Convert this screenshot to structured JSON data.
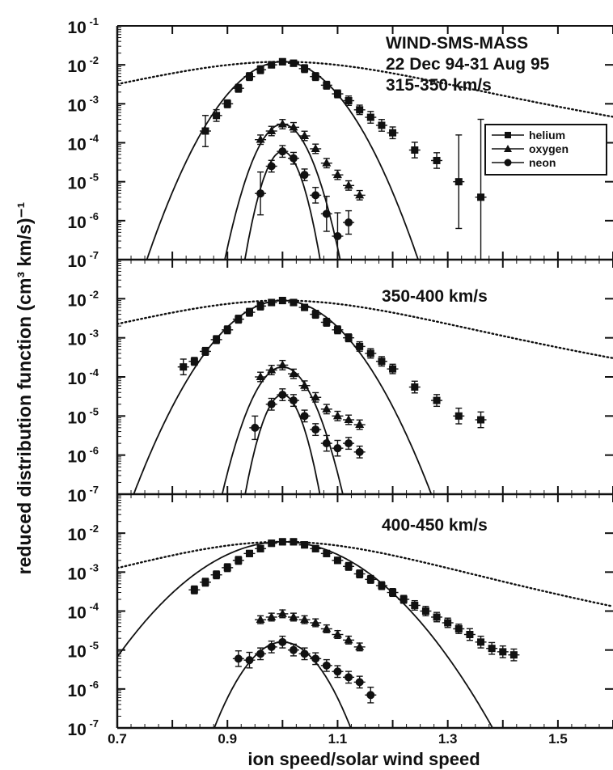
{
  "chart_data": {
    "type": "scatter",
    "xlabel": "ion speed/solar wind speed",
    "ylabel": "reduced distribution function (cm³ km/s)⁻¹",
    "xlim": [
      0.7,
      1.6
    ],
    "x_ticks": [
      "0.7",
      "0.9",
      "1.1",
      "1.3",
      "1.5"
    ],
    "x_tick_values": [
      0.7,
      0.9,
      1.1,
      1.3,
      1.5
    ],
    "y_scale": "log",
    "legend": {
      "placement": "top-right of top panel",
      "entries": [
        "helium",
        "oxygen",
        "neon"
      ]
    },
    "panels": [
      {
        "id": "p1",
        "annotations": [
          "WIND-SMS-MASS",
          "22 Dec 94-31 Aug 95",
          "315-350  km/s"
        ],
        "ylim_exp": [
          -7,
          -1
        ],
        "y_ticks": [
          {
            "base": "10",
            "exp": "-1"
          },
          {
            "base": "10",
            "exp": "-2"
          },
          {
            "base": "10",
            "exp": "-3"
          },
          {
            "base": "10",
            "exp": "-4"
          },
          {
            "base": "10",
            "exp": "-5"
          },
          {
            "base": "10",
            "exp": "-6"
          },
          {
            "base": "10",
            "exp": "-7"
          }
        ],
        "series": [
          {
            "name": "helium",
            "marker": "square",
            "x": [
              0.86,
              0.88,
              0.9,
              0.92,
              0.94,
              0.96,
              0.98,
              1.0,
              1.02,
              1.04,
              1.06,
              1.08,
              1.1,
              1.12,
              1.14,
              1.16,
              1.18,
              1.2,
              1.24,
              1.28,
              1.32,
              1.36
            ],
            "y": [
              0.0002,
              0.0005,
              0.001,
              0.0025,
              0.005,
              0.0075,
              0.01,
              0.012,
              0.011,
              0.008,
              0.005,
              0.003,
              0.0018,
              0.0012,
              0.0007,
              0.00045,
              0.00028,
              0.00018,
              6.5e-05,
              3.5e-05,
              1e-05,
              4e-06
            ],
            "y_err": [
              0.4,
              0.15,
              0.1,
              0.1,
              0.1,
              0.1,
              0.08,
              0.08,
              0.08,
              0.1,
              0.1,
              0.1,
              0.1,
              0.12,
              0.12,
              0.15,
              0.15,
              0.15,
              0.2,
              0.2,
              1.2,
              2.0
            ]
          },
          {
            "name": "oxygen",
            "marker": "triangle",
            "x": [
              0.96,
              0.98,
              1.0,
              1.02,
              1.04,
              1.06,
              1.08,
              1.1,
              1.12,
              1.14
            ],
            "y": [
              0.00012,
              0.0002,
              0.0003,
              0.00025,
              0.00015,
              7e-05,
              3e-05,
              1.5e-05,
              8e-06,
              4.5e-06
            ],
            "y_err": [
              0.12,
              0.12,
              0.12,
              0.12,
              0.12,
              0.12,
              0.12,
              0.12,
              0.12,
              0.12
            ]
          },
          {
            "name": "neon",
            "marker": "circle",
            "x": [
              0.96,
              0.98,
              1.0,
              1.02,
              1.04,
              1.06,
              1.08,
              1.1,
              1.12
            ],
            "y": [
              5e-06,
              2.5e-05,
              6e-05,
              4e-05,
              1.5e-05,
              4.5e-06,
              1.5e-06,
              4e-07,
              9e-07
            ],
            "y_err": [
              0.55,
              0.15,
              0.15,
              0.15,
              0.15,
              0.2,
              0.45,
              0.6,
              0.3
            ]
          }
        ],
        "fits": [
          {
            "type": "dotted",
            "amp": 0.012,
            "x0": 1.0,
            "w": 0.34,
            "k": 2.3
          },
          {
            "type": "solid",
            "amp": 0.012,
            "x0": 1.0,
            "w": 0.072
          },
          {
            "type": "solid",
            "amp": 0.0003,
            "x0": 1.0,
            "w": 0.037
          },
          {
            "type": "solid",
            "amp": 6e-05,
            "x0": 1.0,
            "w": 0.027
          }
        ]
      },
      {
        "id": "p2",
        "annotations": [
          "350-400  km/s"
        ],
        "ylim_exp": [
          -7,
          -1
        ],
        "y_ticks": [
          {
            "base": "10",
            "exp": "-2"
          },
          {
            "base": "10",
            "exp": "-3"
          },
          {
            "base": "10",
            "exp": "-4"
          },
          {
            "base": "10",
            "exp": "-5"
          },
          {
            "base": "10",
            "exp": "-6"
          },
          {
            "base": "10",
            "exp": "-7"
          }
        ],
        "series": [
          {
            "name": "helium",
            "marker": "square",
            "x": [
              0.82,
              0.84,
              0.86,
              0.88,
              0.9,
              0.92,
              0.94,
              0.96,
              0.98,
              1.0,
              1.02,
              1.04,
              1.06,
              1.08,
              1.1,
              1.12,
              1.14,
              1.16,
              1.18,
              1.2,
              1.24,
              1.28,
              1.32,
              1.36
            ],
            "y": [
              0.00018,
              0.00025,
              0.00045,
              0.0009,
              0.0016,
              0.003,
              0.0045,
              0.0065,
              0.008,
              0.009,
              0.008,
              0.006,
              0.004,
              0.0025,
              0.0016,
              0.001,
              0.0006,
              0.0004,
              0.00025,
              0.00016,
              5.5e-05,
              2.5e-05,
              1e-05,
              8e-06
            ],
            "y_err": [
              0.2,
              0.1,
              0.1,
              0.1,
              0.1,
              0.1,
              0.1,
              0.1,
              0.08,
              0.08,
              0.08,
              0.08,
              0.1,
              0.1,
              0.1,
              0.1,
              0.12,
              0.12,
              0.12,
              0.12,
              0.15,
              0.15,
              0.2,
              0.2
            ]
          },
          {
            "name": "oxygen",
            "marker": "triangle",
            "x": [
              0.96,
              0.98,
              1.0,
              1.02,
              1.04,
              1.06,
              1.08,
              1.1,
              1.12,
              1.14
            ],
            "y": [
              0.0001,
              0.00015,
              0.0002,
              0.00012,
              6e-05,
              3e-05,
              1.5e-05,
              1e-05,
              8e-06,
              6e-06
            ],
            "y_err": [
              0.12,
              0.12,
              0.12,
              0.12,
              0.12,
              0.12,
              0.12,
              0.12,
              0.12,
              0.12
            ]
          },
          {
            "name": "neon",
            "marker": "circle",
            "x": [
              0.95,
              0.98,
              1.0,
              1.02,
              1.04,
              1.06,
              1.08,
              1.1,
              1.12,
              1.14
            ],
            "y": [
              5e-06,
              2e-05,
              3.5e-05,
              2.5e-05,
              1e-05,
              4.5e-06,
              2e-06,
              1.5e-06,
              2e-06,
              1.2e-06
            ],
            "y_err": [
              0.3,
              0.15,
              0.15,
              0.15,
              0.15,
              0.15,
              0.2,
              0.2,
              0.15,
              0.15
            ]
          }
        ],
        "fits": [
          {
            "type": "dotted",
            "amp": 0.009,
            "x0": 1.0,
            "w": 0.34,
            "k": 2.4
          },
          {
            "type": "solid",
            "amp": 0.009,
            "x0": 1.0,
            "w": 0.08
          },
          {
            "type": "solid",
            "amp": 0.00018,
            "x0": 1.0,
            "w": 0.04
          },
          {
            "type": "solid",
            "amp": 3.5e-05,
            "x0": 1.0,
            "w": 0.028
          }
        ]
      },
      {
        "id": "p3",
        "annotations": [
          "400-450  km/s"
        ],
        "ylim_exp": [
          -7,
          -1
        ],
        "y_ticks": [
          {
            "base": "10",
            "exp": "-2"
          },
          {
            "base": "10",
            "exp": "-3"
          },
          {
            "base": "10",
            "exp": "-4"
          },
          {
            "base": "10",
            "exp": "-5"
          },
          {
            "base": "10",
            "exp": "-6"
          },
          {
            "base": "10",
            "exp": "-7"
          }
        ],
        "series": [
          {
            "name": "helium",
            "marker": "square",
            "x": [
              0.84,
              0.86,
              0.88,
              0.9,
              0.92,
              0.94,
              0.96,
              0.98,
              1.0,
              1.02,
              1.04,
              1.06,
              1.08,
              1.1,
              1.12,
              1.14,
              1.16,
              1.18,
              1.2,
              1.22,
              1.24,
              1.26,
              1.28,
              1.3,
              1.32,
              1.34,
              1.36,
              1.38,
              1.4,
              1.42
            ],
            "y": [
              0.00035,
              0.00055,
              0.00085,
              0.0013,
              0.002,
              0.003,
              0.004,
              0.0055,
              0.006,
              0.006,
              0.005,
              0.004,
              0.003,
              0.002,
              0.0014,
              0.0009,
              0.00065,
              0.00045,
              0.0003,
              0.0002,
              0.00014,
              0.0001,
              7e-05,
              5e-05,
              3.5e-05,
              2.5e-05,
              1.6e-05,
              1.1e-05,
              9e-06,
              7.5e-06
            ],
            "y_err": [
              0.1,
              0.1,
              0.1,
              0.1,
              0.1,
              0.08,
              0.08,
              0.08,
              0.08,
              0.08,
              0.08,
              0.08,
              0.08,
              0.08,
              0.1,
              0.1,
              0.1,
              0.1,
              0.1,
              0.1,
              0.12,
              0.12,
              0.12,
              0.12,
              0.12,
              0.15,
              0.15,
              0.15,
              0.15,
              0.15
            ]
          },
          {
            "name": "oxygen",
            "marker": "triangle",
            "x": [
              0.96,
              0.98,
              1.0,
              1.02,
              1.04,
              1.06,
              1.08,
              1.1,
              1.12,
              1.14
            ],
            "y": [
              6e-05,
              7e-05,
              8.5e-05,
              7e-05,
              6e-05,
              5e-05,
              3.5e-05,
              2.5e-05,
              1.8e-05,
              1.2e-05
            ],
            "y_err": [
              0.1,
              0.1,
              0.1,
              0.1,
              0.1,
              0.1,
              0.1,
              0.1,
              0.1,
              0.1
            ]
          },
          {
            "name": "neon",
            "marker": "circle",
            "x": [
              0.92,
              0.94,
              0.96,
              0.98,
              1.0,
              1.02,
              1.04,
              1.06,
              1.08,
              1.1,
              1.12,
              1.14,
              1.16
            ],
            "y": [
              6e-06,
              5.5e-06,
              8e-06,
              1.2e-05,
              1.6e-05,
              1e-05,
              8e-06,
              6e-06,
              4e-06,
              2.8e-06,
              2e-06,
              1.5e-06,
              7e-07
            ],
            "y_err": [
              0.2,
              0.2,
              0.15,
              0.15,
              0.15,
              0.15,
              0.15,
              0.15,
              0.15,
              0.15,
              0.15,
              0.15,
              0.2
            ]
          }
        ],
        "fits": [
          {
            "type": "dotted",
            "amp": 0.006,
            "x0": 1.0,
            "w": 0.34,
            "k": 2.7
          },
          {
            "type": "solid",
            "amp": 0.006,
            "x0": 1.0,
            "w": 0.115
          },
          {
            "type": "solid",
            "amp": 1.6e-05,
            "x0": 1.0,
            "w": 0.055
          }
        ]
      }
    ]
  }
}
